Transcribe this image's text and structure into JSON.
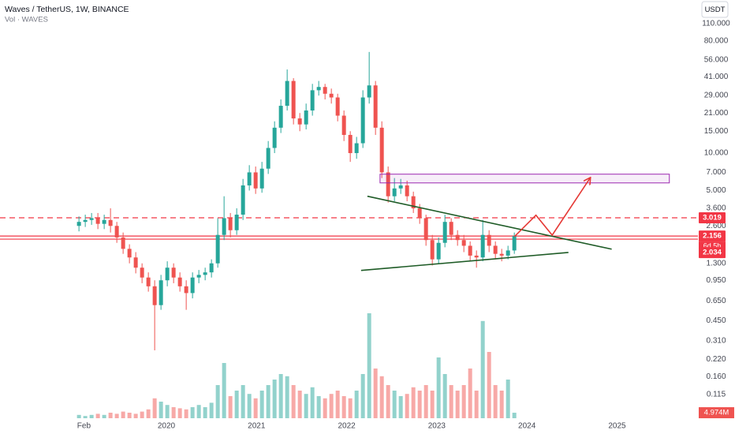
{
  "chart_data": {
    "type": "candlestick",
    "title": "Waves / TetherUS, 1W, BINANCE",
    "currency": "USDT",
    "log_scale": true,
    "grid": false,
    "xlim": [
      2018.154,
      2025.897
    ],
    "xticks": [
      {
        "value": 2019.085,
        "label": "Feb"
      },
      2020,
      2021,
      2022,
      2023,
      2024,
      2025
    ],
    "ylim": [
      0.074,
      170
    ],
    "yticks": [
      {
        "value": 110,
        "label": "110.000"
      },
      {
        "value": 80,
        "label": "80.000"
      },
      {
        "value": 56,
        "label": "56.000"
      },
      {
        "value": 41,
        "label": "41.000"
      },
      {
        "value": 29,
        "label": "29.000"
      },
      {
        "value": 21,
        "label": "21.000"
      },
      {
        "value": 15,
        "label": "15.000"
      },
      {
        "value": 10,
        "label": "10.000"
      },
      {
        "value": 7,
        "label": "7.000"
      },
      {
        "value": 5,
        "label": "5.000"
      },
      {
        "value": 3.6,
        "label": "3.600"
      },
      {
        "value": 2.6,
        "label": "2.600"
      },
      {
        "value": 1.3,
        "label": "1.300"
      },
      {
        "value": 0.95,
        "label": "0.950"
      },
      {
        "value": 0.65,
        "label": "0.650"
      },
      {
        "value": 0.45,
        "label": "0.450"
      },
      {
        "value": 0.31,
        "label": "0.310"
      },
      {
        "value": 0.22,
        "label": "0.220"
      },
      {
        "value": 0.16,
        "label": "0.160"
      },
      {
        "value": 0.115,
        "label": "0.115"
      }
    ],
    "up_color": "#26a69a",
    "down_color": "#ef5350",
    "x": [
      2019.03,
      2019.1,
      2019.17,
      2019.24,
      2019.31,
      2019.38,
      2019.45,
      2019.52,
      2019.59,
      2019.66,
      2019.73,
      2019.8,
      2019.87,
      2019.94,
      2020.01,
      2020.08,
      2020.15,
      2020.22,
      2020.29,
      2020.36,
      2020.43,
      2020.5,
      2020.57,
      2020.64,
      2020.71,
      2020.78,
      2020.85,
      2020.92,
      2020.99,
      2021.06,
      2021.13,
      2021.2,
      2021.27,
      2021.34,
      2021.41,
      2021.48,
      2021.55,
      2021.62,
      2021.69,
      2021.76,
      2021.83,
      2021.9,
      2021.97,
      2022.04,
      2022.11,
      2022.18,
      2022.25,
      2022.32,
      2022.39,
      2022.46,
      2022.53,
      2022.6,
      2022.67,
      2022.74,
      2022.81,
      2022.88,
      2022.95,
      2023.02,
      2023.09,
      2023.16,
      2023.23,
      2023.3,
      2023.37,
      2023.44,
      2023.51,
      2023.58,
      2023.65,
      2023.72,
      2023.79,
      2023.86
    ],
    "open": [
      2.6,
      2.8,
      2.9,
      3.0,
      2.7,
      2.9,
      2.6,
      2.1,
      1.7,
      1.45,
      1.2,
      1.0,
      0.85,
      0.6,
      0.95,
      1.2,
      1.0,
      0.85,
      0.75,
      1.0,
      1.05,
      1.1,
      1.3,
      2.2,
      3.0,
      2.4,
      3.2,
      5.5,
      7.0,
      5.2,
      7.5,
      11,
      16,
      24,
      38,
      19,
      17,
      22,
      32,
      34,
      30,
      28,
      20,
      14,
      10,
      12,
      28,
      35,
      16,
      7,
      4.5,
      5.2,
      5.5,
      4.5,
      3.6,
      3.0,
      2.0,
      1.4,
      1.9,
      2.8,
      2.2,
      2.0,
      1.8,
      1.5,
      1.45,
      2.2,
      1.8,
      1.55,
      1.5,
      1.65
    ],
    "high": [
      3.1,
      3.2,
      3.3,
      3.3,
      3.2,
      3.6,
      2.8,
      2.3,
      1.85,
      1.6,
      1.3,
      1.1,
      0.95,
      1.05,
      1.35,
      1.3,
      1.1,
      0.95,
      1.1,
      1.15,
      1.2,
      1.4,
      3.0,
      4.5,
      3.3,
      3.6,
      6.2,
      8.0,
      7.8,
      8.5,
      12.5,
      18,
      27,
      47,
      40,
      21,
      25,
      36,
      38,
      36,
      33,
      30,
      22,
      15,
      13.5,
      32,
      65,
      38,
      18,
      7.8,
      6.3,
      6.2,
      6.0,
      4.9,
      3.9,
      3.2,
      2.2,
      2.1,
      3.2,
      3.0,
      2.4,
      2.2,
      1.95,
      1.65,
      2.9,
      2.4,
      1.95,
      1.7,
      1.8,
      2.3
    ],
    "low": [
      2.35,
      2.55,
      2.65,
      2.45,
      2.45,
      2.3,
      1.9,
      1.55,
      1.3,
      1.08,
      0.9,
      0.77,
      0.26,
      0.55,
      0.85,
      0.9,
      0.77,
      0.55,
      0.68,
      0.9,
      0.95,
      1.0,
      1.2,
      2.0,
      2.1,
      2.2,
      2.9,
      5.0,
      4.7,
      4.8,
      6.8,
      10,
      14.5,
      22,
      17,
      15,
      15.5,
      20,
      29,
      27,
      25,
      18,
      12.5,
      8.5,
      9,
      11,
      25,
      14,
      6.3,
      4.0,
      4.1,
      4.7,
      4.1,
      3.3,
      2.7,
      1.8,
      1.25,
      1.3,
      1.75,
      2.0,
      1.8,
      1.6,
      1.35,
      1.2,
      1.35,
      1.6,
      1.4,
      1.35,
      1.4,
      1.55
    ],
    "close": [
      2.8,
      2.9,
      3.0,
      2.7,
      2.9,
      2.6,
      2.1,
      1.7,
      1.45,
      1.2,
      1.0,
      0.85,
      0.6,
      0.95,
      1.2,
      1.0,
      0.85,
      0.75,
      1.0,
      1.05,
      1.1,
      1.3,
      2.2,
      3.0,
      2.4,
      3.2,
      5.5,
      7.0,
      5.2,
      7.5,
      11,
      16,
      24,
      38,
      19,
      17,
      22,
      32,
      34,
      30,
      28,
      20,
      14,
      10,
      12,
      28,
      35,
      16,
      7,
      4.5,
      5.2,
      5.5,
      4.5,
      3.6,
      3.0,
      2.0,
      1.4,
      1.9,
      2.8,
      2.2,
      2.0,
      1.8,
      1.5,
      1.45,
      2.2,
      1.8,
      1.55,
      1.5,
      1.65,
      2.156
    ],
    "volume": {
      "name": "Vol · WAVES",
      "ylim": [
        0,
        100
      ],
      "values": [
        3,
        2,
        3,
        4,
        3,
        5,
        4,
        6,
        5,
        4,
        6,
        8,
        18,
        15,
        12,
        10,
        9,
        8,
        10,
        12,
        10,
        14,
        30,
        50,
        20,
        25,
        30,
        22,
        18,
        25,
        30,
        35,
        40,
        38,
        30,
        25,
        22,
        28,
        20,
        18,
        22,
        25,
        20,
        18,
        25,
        40,
        95,
        45,
        38,
        30,
        25,
        20,
        22,
        28,
        25,
        30,
        25,
        55,
        40,
        30,
        25,
        30,
        45,
        25,
        88,
        60,
        30,
        25,
        35,
        4.974
      ],
      "last_label": "4.974M"
    },
    "price_lines": [
      {
        "value": 3.019,
        "dashed": true,
        "color": "#f23645"
      },
      {
        "value": 2.156,
        "dashed": false,
        "color": "#f23645"
      },
      {
        "value": 2.034,
        "dashed": false,
        "color": "#f23645"
      }
    ],
    "countdown": "6d 5h",
    "trendlines": [
      {
        "x": [
          2022.23,
          2024.94
        ],
        "y": [
          4.5,
          1.69
        ],
        "color": "#1e5b26"
      },
      {
        "x": [
          2022.16,
          2024.46
        ],
        "y": [
          1.14,
          1.59
        ],
        "color": "#1e5b26"
      }
    ],
    "zone": {
      "x": [
        2022.37,
        2025.58
      ],
      "y": [
        5.76,
        6.77
      ],
      "color": "#9c27b0"
    },
    "projection": {
      "x": [
        2023.86,
        2024.1,
        2024.28,
        2024.7
      ],
      "y": [
        2.13,
        3.17,
        2.19,
        6.3
      ],
      "color": "#e53935"
    }
  }
}
